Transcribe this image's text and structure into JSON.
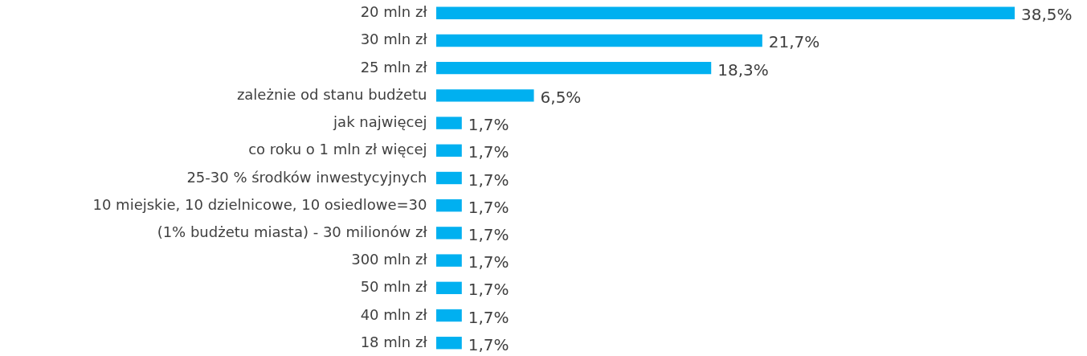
{
  "chart_data": {
    "type": "bar",
    "orientation": "horizontal",
    "color": "#00b0f0",
    "categories": [
      "20 mln zł",
      "30 mln zł",
      "25 mln zł",
      "zależnie od stanu budżetu",
      "jak najwięcej",
      "co roku o 1 mln zł więcej",
      "25-30 % środków inwestycyjnych",
      "10 miejskie, 10 dzielnicowe, 10 osiedlowe=30",
      "(1% budżetu miasta) - 30 milionów zł",
      "300 mln zł",
      "50 mln zł",
      "40 mln zł",
      "18 mln zł"
    ],
    "values": [
      38.5,
      21.7,
      18.3,
      6.5,
      1.7,
      1.7,
      1.7,
      1.7,
      1.7,
      1.7,
      1.7,
      1.7,
      1.7
    ],
    "value_labels": [
      "38,5%",
      "21,7%",
      "18,3%",
      "6,5%",
      "1,7%",
      "1,7%",
      "1,7%",
      "1,7%",
      "1,7%",
      "1,7%",
      "1,7%",
      "1,7%",
      "1,7%"
    ]
  }
}
